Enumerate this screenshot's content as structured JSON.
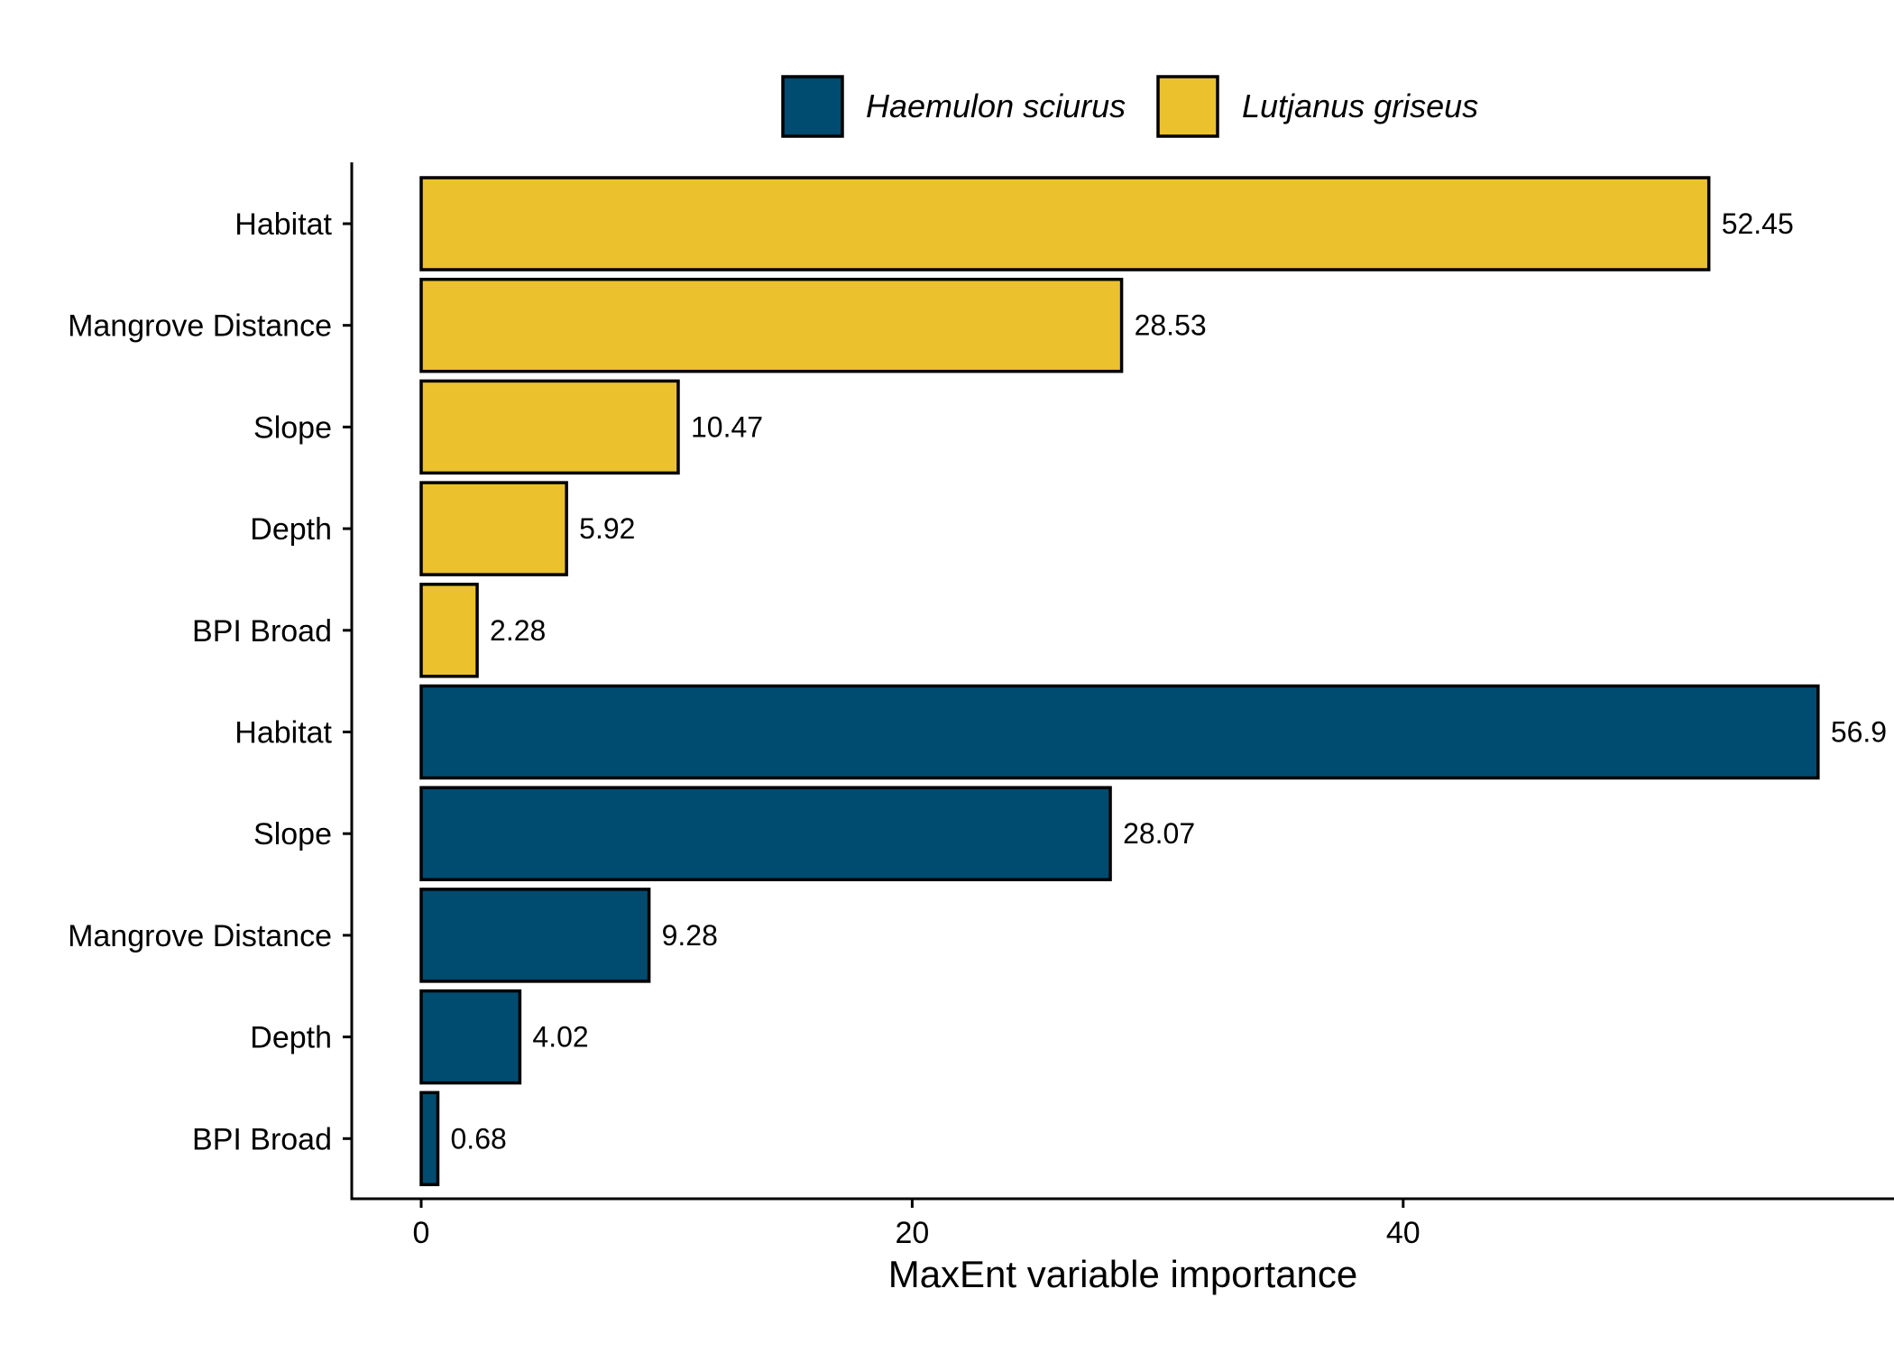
{
  "colors": {
    "background": "#ffffff",
    "axis": "#000000",
    "bar_border": "#000000",
    "text": "#000000"
  },
  "chart_data": {
    "type": "bar",
    "orientation": "horizontal",
    "title": "",
    "xlabel": "MaxEnt variable importance",
    "ylabel": "",
    "xlim": [
      0,
      57
    ],
    "x_ticks": [
      0,
      20,
      40
    ],
    "grid": false,
    "legend_position": "top",
    "series": [
      {
        "name": "Haemulon sciurus",
        "color": "#004B70"
      },
      {
        "name": "Lutjanus griseus",
        "color": "#EBC12E"
      }
    ],
    "bars": [
      {
        "label": "Habitat",
        "value": 52.45,
        "value_label": "52.45",
        "series": "Lutjanus griseus"
      },
      {
        "label": "Mangrove Distance",
        "value": 28.53,
        "value_label": "28.53",
        "series": "Lutjanus griseus"
      },
      {
        "label": "Slope",
        "value": 10.47,
        "value_label": "10.47",
        "series": "Lutjanus griseus"
      },
      {
        "label": "Depth",
        "value": 5.92,
        "value_label": "5.92",
        "series": "Lutjanus griseus"
      },
      {
        "label": "BPI Broad",
        "value": 2.28,
        "value_label": "2.28",
        "series": "Lutjanus griseus"
      },
      {
        "label": "Habitat",
        "value": 56.9,
        "value_label": "56.9",
        "series": "Haemulon sciurus"
      },
      {
        "label": "Slope",
        "value": 28.07,
        "value_label": "28.07",
        "series": "Haemulon sciurus"
      },
      {
        "label": "Mangrove Distance",
        "value": 9.28,
        "value_label": "9.28",
        "series": "Haemulon sciurus"
      },
      {
        "label": "Depth",
        "value": 4.02,
        "value_label": "4.02",
        "series": "Haemulon sciurus"
      },
      {
        "label": "BPI Broad",
        "value": 0.68,
        "value_label": "0.68",
        "series": "Haemulon sciurus"
      }
    ]
  }
}
